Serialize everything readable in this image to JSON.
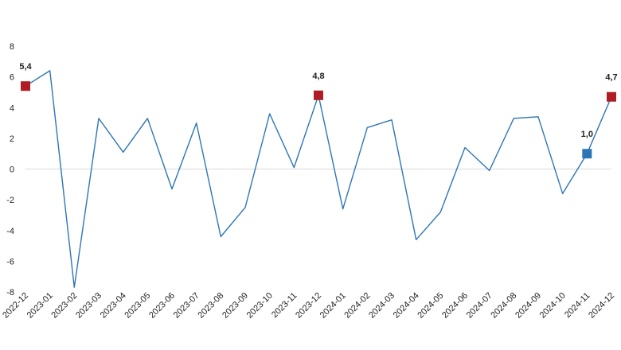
{
  "chart_data": {
    "type": "line",
    "title": "",
    "xlabel": "",
    "ylabel": "",
    "ylim": [
      -8,
      8
    ],
    "yticks": [
      8,
      6,
      4,
      2,
      0,
      -2,
      -4,
      -6,
      -8
    ],
    "grid": false,
    "zero_line": true,
    "categories": [
      "2022-12",
      "2023-01",
      "2023-02",
      "2023-03",
      "2023-04",
      "2023-05",
      "2023-06",
      "2023-07",
      "2023-08",
      "2023-09",
      "2023-10",
      "2023-11",
      "2023-12",
      "2024-01",
      "2024-02",
      "2024-03",
      "2024-04",
      "2024-05",
      "2024-06",
      "2024-07",
      "2024-08",
      "2024-09",
      "2024-10",
      "2024-11",
      "2024-12"
    ],
    "series": [
      {
        "values": [
          5.4,
          6.4,
          -7.7,
          3.3,
          1.1,
          3.3,
          -1.3,
          3.0,
          -4.4,
          -2.5,
          3.6,
          0.1,
          4.8,
          -2.6,
          2.7,
          3.2,
          -4.6,
          -2.8,
          1.4,
          -0.1,
          3.3,
          3.4,
          -1.6,
          1.0,
          4.7
        ],
        "color": "#2e75b6"
      }
    ],
    "highlights": [
      {
        "index": 0,
        "label": "5,4",
        "color": "#b01c24"
      },
      {
        "index": 12,
        "label": "4,8",
        "color": "#b01c24"
      },
      {
        "index": 23,
        "label": "1,0",
        "color": "#2e75b6"
      },
      {
        "index": 24,
        "label": "4,7",
        "color": "#b01c24"
      }
    ],
    "colors": {
      "line": "#2e75b6",
      "highlight_red": "#b01c24",
      "highlight_blue": "#2e75b6",
      "zero_line": "#d9d9d9"
    }
  }
}
